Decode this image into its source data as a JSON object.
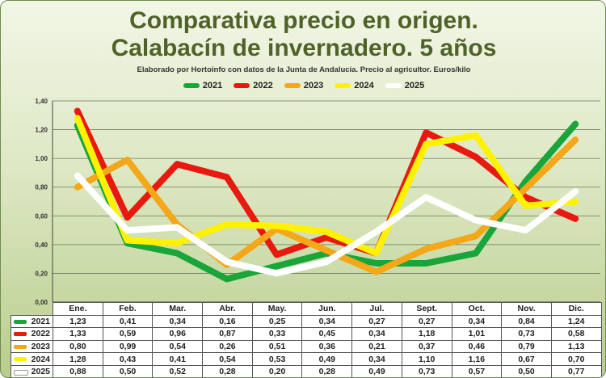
{
  "title_line1": "Comparativa precio en origen.",
  "title_line2": "Calabacín de invernadero.  5 años",
  "subtitle": "Elaborado por Hortoinfo con datos de la Junta de Andalucía. Precio al agricultor. Euros/kilo",
  "chart_data": {
    "type": "line",
    "categories": [
      "Ene.",
      "Feb.",
      "Mar.",
      "Abr.",
      "May.",
      "Jun.",
      "Jul.",
      "Sept.",
      "Oct.",
      "Nov.",
      "Dic."
    ],
    "ylim": [
      0,
      1.4
    ],
    "yticks": [
      "0,00",
      "0,20",
      "0,40",
      "0,60",
      "0,80",
      "1,00",
      "1,20",
      "1,40"
    ],
    "grid": true,
    "legend_position": "top",
    "series": [
      {
        "name": "2021",
        "color": "#1aa53a",
        "values": [
          1.23,
          0.41,
          0.34,
          0.16,
          0.25,
          0.34,
          0.27,
          0.27,
          0.34,
          0.84,
          1.24
        ],
        "labels": [
          "1,23",
          "0,41",
          "0,34",
          "0,16",
          "0,25",
          "0,34",
          "0,27",
          "0,27",
          "0,34",
          "0,84",
          "1,24"
        ]
      },
      {
        "name": "2022",
        "color": "#e8190f",
        "values": [
          1.33,
          0.59,
          0.96,
          0.87,
          0.33,
          0.45,
          0.34,
          1.18,
          1.01,
          0.73,
          0.58
        ],
        "labels": [
          "1,33",
          "0,59",
          "0,96",
          "0,87",
          "0,33",
          "0,45",
          "0,34",
          "1,18",
          "1,01",
          "0,73",
          "0,58"
        ]
      },
      {
        "name": "2023",
        "color": "#f4a718",
        "values": [
          0.8,
          0.99,
          0.54,
          0.26,
          0.51,
          0.36,
          0.21,
          0.37,
          0.46,
          0.79,
          1.13
        ],
        "labels": [
          "0,80",
          "0,99",
          "0,54",
          "0,26",
          "0,51",
          "0,36",
          "0,21",
          "0,37",
          "0,46",
          "0,79",
          "1,13"
        ]
      },
      {
        "name": "2024",
        "color": "#fff200",
        "values": [
          1.28,
          0.43,
          0.41,
          0.54,
          0.53,
          0.49,
          0.34,
          1.1,
          1.16,
          0.67,
          0.7
        ],
        "labels": [
          "1,28",
          "0,43",
          "0,41",
          "0,54",
          "0,53",
          "0,49",
          "0,34",
          "1,10",
          "1,16",
          "0,67",
          "0,70"
        ]
      },
      {
        "name": "2025",
        "color": "#ffffff",
        "values": [
          0.88,
          0.5,
          0.52,
          0.28,
          0.2,
          0.28,
          0.49,
          0.73,
          0.57,
          0.5,
          0.77
        ],
        "labels": [
          "0,88",
          "0,50",
          "0,52",
          "0,28",
          "0,20",
          "0,28",
          "0,49",
          "0,73",
          "0,57",
          "0,50",
          "0,77"
        ]
      }
    ]
  }
}
